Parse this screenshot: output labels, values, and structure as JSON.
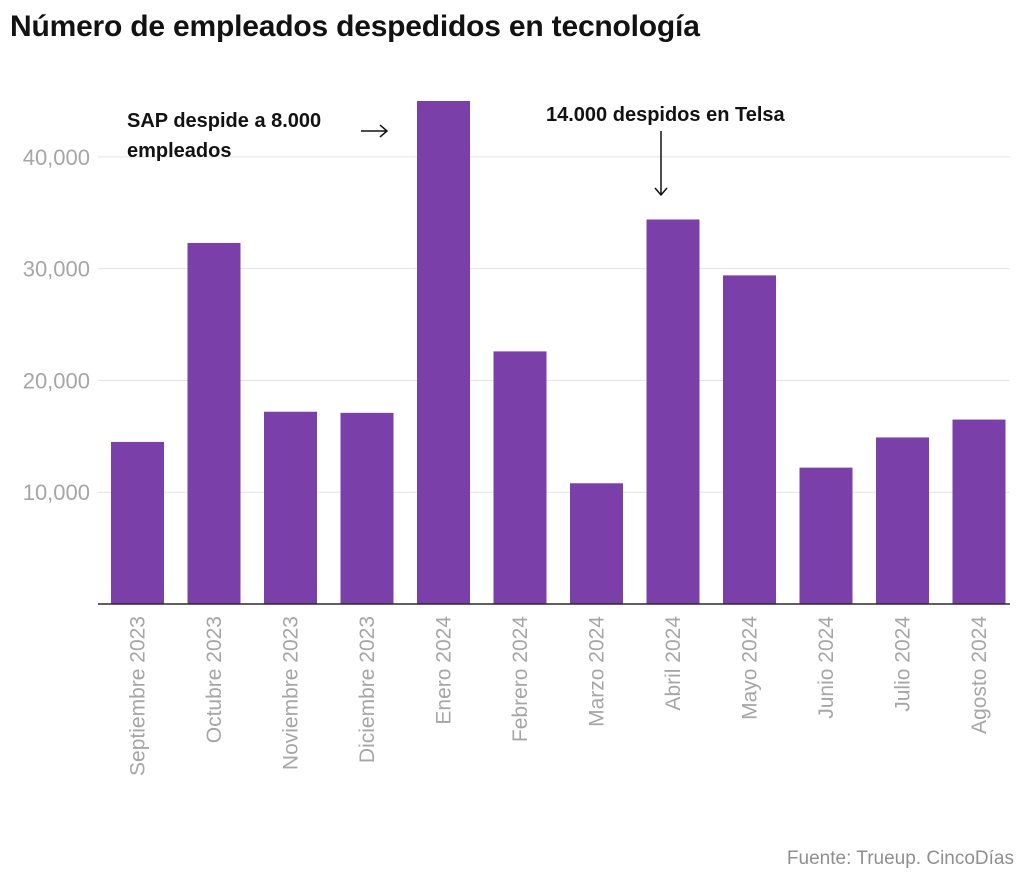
{
  "chart_data": {
    "type": "bar",
    "title": "Número de empleados despedidos en tecnología",
    "categories": [
      "Septiembre 2023",
      "Octubre 2023",
      "Noviembre 2023",
      "Diciembre 2023",
      "Enero 2024",
      "Febrero 2024",
      "Marzo 2024",
      "Abril 2024",
      "Mayo 2024",
      "Junio 2024",
      "Julio 2024",
      "Agosto 2024"
    ],
    "values": [
      14500,
      32300,
      17200,
      17100,
      45000,
      22600,
      10800,
      34400,
      29400,
      12200,
      14900,
      16500
    ],
    "yticks": [
      10000,
      20000,
      30000,
      40000
    ],
    "ytick_labels": [
      "10,000",
      "20,000",
      "30,000",
      "40,000"
    ],
    "ylim": [
      0,
      45000
    ],
    "grid": true,
    "bar_color": "#7b3fa9",
    "annotations": [
      {
        "lines": [
          "SAP despide a 8.000",
          "empleados"
        ],
        "target": "Enero 2024",
        "arrow": "right"
      },
      {
        "lines": [
          "14.000 despidos en Telsa"
        ],
        "target": "Abril 2024",
        "arrow": "down"
      }
    ]
  },
  "source": "Fuente: Trueup. CincoDías"
}
